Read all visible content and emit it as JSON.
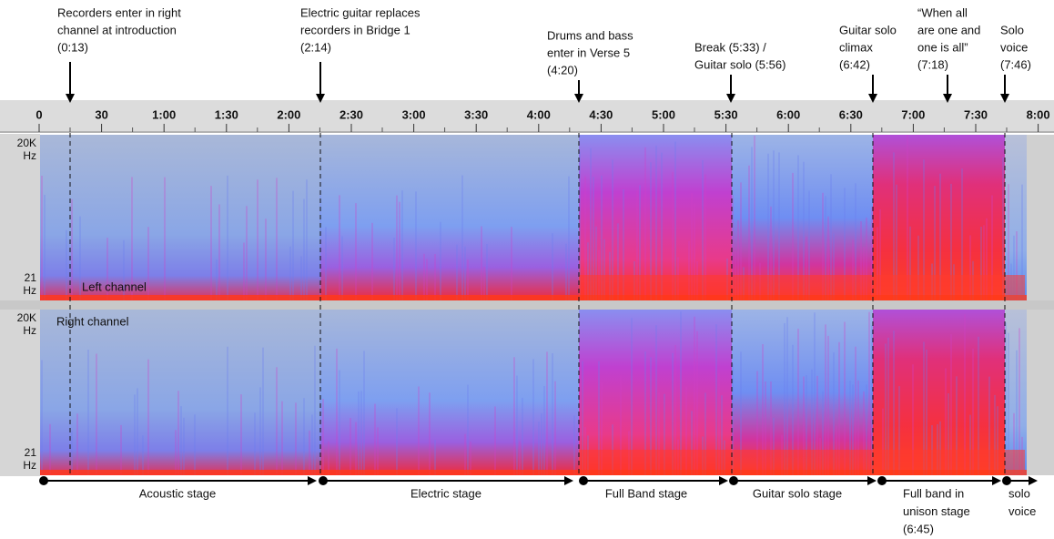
{
  "annotations": [
    {
      "lines": [
        "Recorders enter in right",
        "channel at introduction",
        "(0:13)"
      ]
    },
    {
      "lines": [
        "Electric guitar replaces",
        "recorders in Bridge 1",
        "(2:14)"
      ]
    },
    {
      "lines": [
        "Drums and bass",
        "enter in Verse 5",
        "(4:20)"
      ]
    },
    {
      "lines": [
        "Break (5:33) /",
        "Guitar solo (5:56)"
      ]
    },
    {
      "lines": [
        "Guitar solo",
        "climax",
        "(6:42)"
      ]
    },
    {
      "lines": [
        "“When all",
        "are one and",
        "one is all”",
        "(7:18)"
      ]
    },
    {
      "lines": [
        "Solo",
        "voice",
        "(7:46)"
      ]
    }
  ],
  "ruler": [
    "0",
    "30",
    "1:00",
    "1:30",
    "2:00",
    "2:30",
    "3:00",
    "3:30",
    "4:00",
    "4:30",
    "5:00",
    "5:30",
    "6:00",
    "6:30",
    "7:00",
    "7:30",
    "8:00"
  ],
  "channels": [
    {
      "name": "Left channel",
      "top_freq": [
        "20K",
        "Hz"
      ],
      "bottom_freq": [
        "21",
        "Hz"
      ]
    },
    {
      "name": "Right channel",
      "top_freq": [
        "20K",
        "Hz"
      ],
      "bottom_freq": [
        "21",
        "Hz"
      ]
    }
  ],
  "stages": [
    {
      "lines": [
        "Acoustic stage"
      ]
    },
    {
      "lines": [
        "Electric stage"
      ]
    },
    {
      "lines": [
        "Full Band stage"
      ]
    },
    {
      "lines": [
        "Guitar solo stage"
      ]
    },
    {
      "lines": [
        "Full band in",
        "unison stage",
        "(6:45)"
      ]
    },
    {
      "lines": [
        "solo",
        "voice"
      ]
    }
  ]
}
